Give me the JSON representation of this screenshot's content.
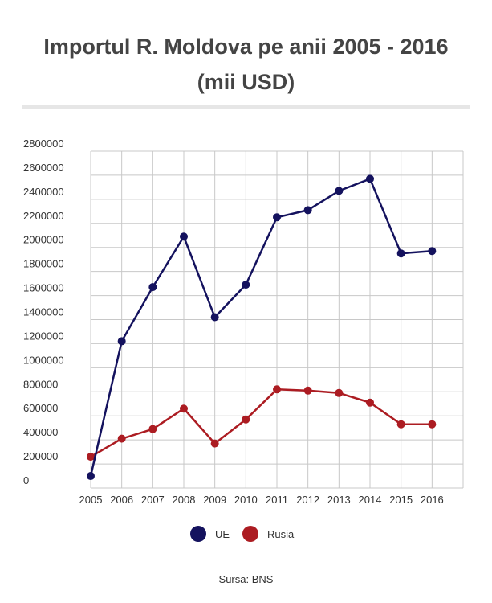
{
  "title_line1": "Importul R. Moldova pe anii 2005 - 2016",
  "title_line2": "(mii USD)",
  "source": "Sursa: BNS",
  "colors": {
    "ue": "#14125e",
    "rusia": "#ac1c22",
    "grid": "#c8c8c8",
    "rule": "#e6e6e6"
  },
  "legend": [
    {
      "label": "UE",
      "color": "#14125e"
    },
    {
      "label": "Rusia",
      "color": "#ac1c22"
    }
  ],
  "chart_data": {
    "type": "line",
    "title": "Importul R. Moldova pe anii 2005 - 2016 (mii USD)",
    "x": [
      "2005",
      "2006",
      "2007",
      "2008",
      "2009",
      "2010",
      "2011",
      "2012",
      "2013",
      "2014",
      "2015",
      "2016"
    ],
    "series": [
      {
        "name": "UE",
        "color": "#14125e",
        "values": [
          100000,
          1220000,
          1670000,
          2090000,
          1420000,
          1690000,
          2250000,
          2310000,
          2470000,
          2570000,
          1950000,
          1970000
        ]
      },
      {
        "name": "Rusia",
        "color": "#ac1c22",
        "values": [
          260000,
          410000,
          490000,
          660000,
          370000,
          570000,
          820000,
          810000,
          790000,
          710000,
          530000,
          530000
        ]
      }
    ],
    "ylim": [
      0,
      2800000
    ],
    "yticks": [
      0,
      200000,
      400000,
      600000,
      800000,
      1000000,
      1200000,
      1400000,
      1600000,
      1800000,
      2000000,
      2200000,
      2400000,
      2600000,
      2800000
    ],
    "xlabel": "",
    "ylabel": "",
    "grid": true,
    "legend_position": "bottom"
  }
}
